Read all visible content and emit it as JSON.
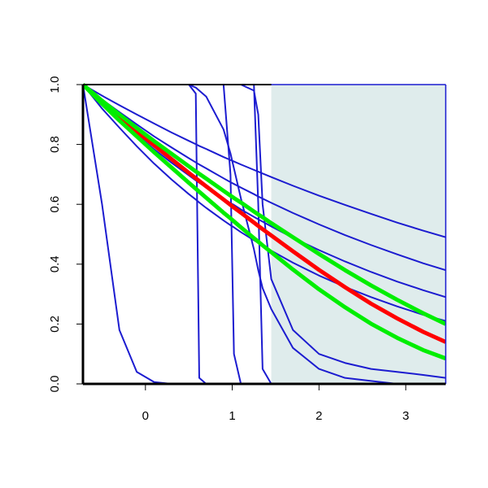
{
  "chart_data": {
    "type": "line",
    "x": [
      -0.72,
      -0.5,
      -0.3,
      -0.1,
      0.1,
      0.3,
      0.5,
      0.58,
      0.62,
      0.7,
      0.9,
      0.98,
      1.02,
      1.1,
      1.25,
      1.3,
      1.35,
      1.45,
      1.7,
      2.0,
      2.3,
      2.6,
      2.9,
      3.2,
      3.46
    ],
    "xlim": [
      -0.72,
      3.46
    ],
    "ylim": [
      0,
      1
    ],
    "xticks": [
      0,
      1,
      2,
      3
    ],
    "yticks": [
      {
        "value": 0,
        "label": "0.0"
      },
      0.2,
      0.4,
      0.6,
      0.8,
      {
        "value": 1,
        "label": "1.0"
      }
    ],
    "shaded_region": {
      "xmin": 1.45,
      "xmax": 3.46,
      "color": "#dfecec"
    },
    "series": [
      {
        "color": "#1c1cd0",
        "line_width": 2,
        "values": [
          1,
          0.6,
          0.18,
          0.04,
          0.006,
          0,
          0,
          0,
          0,
          0,
          0,
          0,
          0,
          0,
          0,
          0,
          0,
          0,
          0,
          0,
          0,
          0,
          0,
          0,
          0
        ]
      },
      {
        "color": "#1c1cd0",
        "line_width": 2,
        "values": [
          1,
          1,
          1,
          1,
          1,
          1,
          1,
          0.97,
          0.02,
          0,
          0,
          0,
          0,
          0,
          0,
          0,
          0,
          0,
          0,
          0,
          0,
          0,
          0,
          0,
          0
        ]
      },
      {
        "color": "#1c1cd0",
        "line_width": 2,
        "values": [
          1,
          1,
          1,
          1,
          1,
          1,
          1,
          1,
          1,
          1,
          1,
          0.7,
          0.1,
          0,
          0,
          0,
          0,
          0,
          0,
          0,
          0,
          0,
          0,
          0,
          0
        ]
      },
      {
        "color": "#1c1cd0",
        "line_width": 2,
        "values": [
          1,
          1,
          1,
          1,
          1,
          1,
          1,
          1,
          1,
          1,
          1,
          1,
          1,
          1,
          1,
          0.6,
          0.05,
          0,
          0,
          0,
          0,
          0,
          0,
          0,
          0
        ]
      },
      {
        "color": "#1c1cd0",
        "line_width": 2,
        "values": [
          1,
          1,
          1,
          1,
          1,
          1,
          1,
          0.99,
          0.98,
          0.96,
          0.85,
          0.77,
          0.72,
          0.62,
          0.45,
          0.38,
          0.32,
          0.25,
          0.12,
          0.05,
          0.02,
          0.01,
          0,
          0,
          0
        ]
      },
      {
        "color": "#1c1cd0",
        "line_width": 2,
        "values": [
          1,
          1,
          1,
          1,
          1,
          1,
          1,
          1,
          1,
          1,
          1,
          1,
          1,
          1,
          0.98,
          0.9,
          0.6,
          0.35,
          0.18,
          0.1,
          0.07,
          0.05,
          0.04,
          0.03,
          0.02
        ]
      },
      {
        "color": "#1c1cd0",
        "line_width": 2,
        "values": [
          1,
          0.963,
          0.931,
          0.9,
          0.87,
          0.84,
          0.812,
          0.801,
          0.795,
          0.785,
          0.758,
          0.748,
          0.743,
          0.733,
          0.715,
          0.709,
          0.703,
          0.691,
          0.662,
          0.629,
          0.598,
          0.568,
          0.539,
          0.512,
          0.49
        ]
      },
      {
        "color": "#1c1cd0",
        "line_width": 2,
        "values": [
          1,
          0.95,
          0.908,
          0.867,
          0.827,
          0.79,
          0.754,
          0.74,
          0.733,
          0.72,
          0.687,
          0.674,
          0.668,
          0.656,
          0.634,
          0.626,
          0.619,
          0.605,
          0.571,
          0.533,
          0.497,
          0.464,
          0.433,
          0.403,
          0.38
        ]
      },
      {
        "color": "#1c1cd0",
        "line_width": 2,
        "values": [
          1,
          0.936,
          0.883,
          0.833,
          0.784,
          0.739,
          0.697,
          0.68,
          0.672,
          0.656,
          0.619,
          0.604,
          0.598,
          0.583,
          0.558,
          0.55,
          0.542,
          0.526,
          0.488,
          0.447,
          0.409,
          0.374,
          0.342,
          0.313,
          0.29
        ]
      },
      {
        "color": "#1c1cd0",
        "line_width": 2,
        "values": [
          1,
          0.92,
          0.856,
          0.794,
          0.736,
          0.683,
          0.634,
          0.616,
          0.606,
          0.588,
          0.546,
          0.53,
          0.523,
          0.507,
          0.48,
          0.471,
          0.462,
          0.445,
          0.405,
          0.362,
          0.324,
          0.29,
          0.259,
          0.231,
          0.21
        ]
      },
      {
        "color": "#ff0000",
        "line_width": 5,
        "values": [
          1,
          0.942,
          0.892,
          0.844,
          0.797,
          0.751,
          0.705,
          0.687,
          0.678,
          0.66,
          0.616,
          0.598,
          0.589,
          0.572,
          0.539,
          0.528,
          0.517,
          0.496,
          0.443,
          0.381,
          0.323,
          0.268,
          0.219,
          0.174,
          0.14
        ]
      },
      {
        "color": "#00ee00",
        "line_width": 5,
        "values": [
          1,
          0.946,
          0.9,
          0.855,
          0.811,
          0.769,
          0.727,
          0.71,
          0.702,
          0.686,
          0.645,
          0.629,
          0.621,
          0.606,
          0.576,
          0.566,
          0.557,
          0.537,
          0.49,
          0.434,
          0.38,
          0.329,
          0.281,
          0.236,
          0.2
        ]
      },
      {
        "color": "#00ee00",
        "line_width": 5,
        "values": [
          1,
          0.936,
          0.88,
          0.827,
          0.774,
          0.723,
          0.672,
          0.652,
          0.642,
          0.622,
          0.572,
          0.553,
          0.543,
          0.523,
          0.487,
          0.475,
          0.463,
          0.44,
          0.382,
          0.316,
          0.256,
          0.201,
          0.154,
          0.113,
          0.085
        ]
      }
    ]
  }
}
